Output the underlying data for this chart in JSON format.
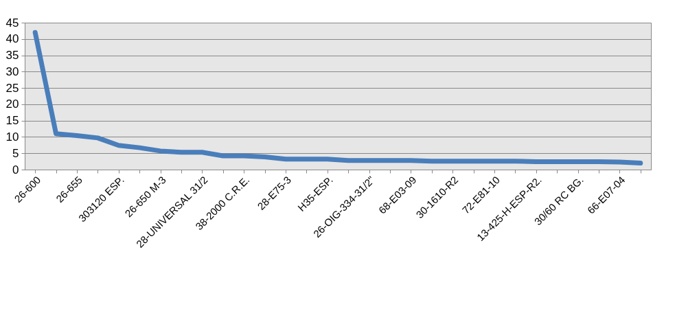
{
  "chart_data": {
    "type": "line",
    "categories": [
      "26-600",
      null,
      "26-655",
      null,
      "303120 ESP.",
      null,
      "26-650 M-3",
      null,
      "28-UNIVERSAL 31/2",
      null,
      "38-2000 C.R.E.",
      null,
      "28-E75-3",
      null,
      "H35-ESP.",
      null,
      "26-OIG-334-31/2\"",
      null,
      "68-E03-09",
      null,
      "30-1610-R2",
      null,
      "72-E81-10",
      null,
      "13-425-H-ESP-R2.",
      null,
      "30/60 RC BG.",
      null,
      "66-E07-04",
      null
    ],
    "series": [
      {
        "color": "#4a7ebb",
        "values": [
          42,
          11,
          10.4,
          9.7,
          7.4,
          6.7,
          5.7,
          5.3,
          5.3,
          4.2,
          4.2,
          3.9,
          3.2,
          3.2,
          3.2,
          2.8,
          2.8,
          2.8,
          2.8,
          2.6,
          2.6,
          2.6,
          2.6,
          2.6,
          2.4,
          2.4,
          2.4,
          2.4,
          2.3,
          2
        ]
      }
    ],
    "ylim": [
      0,
      45
    ],
    "yticks": [
      0,
      5,
      10,
      15,
      20,
      25,
      30,
      35,
      40,
      45
    ],
    "grid": "y",
    "legend": false,
    "marker": "none",
    "line_style": "solid"
  }
}
